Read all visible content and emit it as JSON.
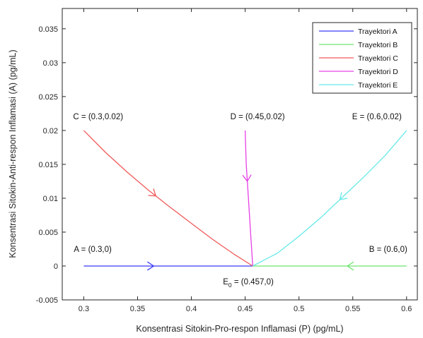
{
  "chart_data": {
    "type": "line",
    "title": "",
    "xlabel": "Konsentrasi Sitokin-Pro-respon Inflamasi (P) (pg/mL)",
    "ylabel": "Konsentrasi Sitokin-Anti-respon Inflamasi (A) (pg/mL)",
    "xlim": [
      0.28,
      0.61
    ],
    "ylim": [
      -0.005,
      0.038
    ],
    "x_ticks": [
      "0.3",
      "0.35",
      "0.4",
      "0.45",
      "0.5",
      "0.55",
      "0.6"
    ],
    "x_tick_values": [
      0.3,
      0.35,
      0.4,
      0.45,
      0.5,
      0.55,
      0.6
    ],
    "y_ticks": [
      "-0.005",
      "0",
      "0.005",
      "0.01",
      "0.015",
      "0.02",
      "0.025",
      "0.03",
      "0.035"
    ],
    "y_tick_values": [
      -0.005,
      0,
      0.005,
      0.01,
      0.015,
      0.02,
      0.025,
      0.03,
      0.035
    ],
    "grid": false,
    "legend_position": "top-right",
    "series": [
      {
        "name": "Trayektori A",
        "color": "#3b3bf5",
        "x": [
          0.3,
          0.457
        ],
        "y": [
          0,
          0
        ],
        "arrow_at": 0.365
      },
      {
        "name": "Trayektori B",
        "color": "#6fe46f",
        "x": [
          0.6,
          0.457
        ],
        "y": [
          0,
          0
        ],
        "arrow_at": 0.545
      },
      {
        "name": "Trayektori C",
        "color": "#f05a5a",
        "x": [
          0.3,
          0.32,
          0.34,
          0.36,
          0.38,
          0.4,
          0.42,
          0.44,
          0.457
        ],
        "y": [
          0.02,
          0.0168,
          0.0139,
          0.0112,
          0.0087,
          0.0063,
          0.0039,
          0.0017,
          0.0
        ],
        "arrow_at": 0.367
      },
      {
        "name": "Trayektori D",
        "color": "#e640e6",
        "x": [
          0.45,
          0.451,
          0.453,
          0.455,
          0.457
        ],
        "y": [
          0.02,
          0.015,
          0.01,
          0.005,
          0.0
        ],
        "arrow_at": 0.452
      },
      {
        "name": "Trayektori E",
        "color": "#66e8e8",
        "x": [
          0.6,
          0.58,
          0.56,
          0.54,
          0.52,
          0.5,
          0.48,
          0.457
        ],
        "y": [
          0.02,
          0.0163,
          0.0131,
          0.0101,
          0.0071,
          0.0044,
          0.0019,
          0.0
        ],
        "arrow_at": 0.538
      }
    ],
    "annotations": [
      {
        "id": "A",
        "text": "A = (0.3,0)",
        "x": 0.3,
        "y": 0
      },
      {
        "id": "B",
        "text": "B = (0.6,0)",
        "x": 0.6,
        "y": 0
      },
      {
        "id": "C",
        "text": "C = (0.3,0.02)",
        "x": 0.3,
        "y": 0.02
      },
      {
        "id": "D",
        "text": "D = (0.45,0.02)",
        "x": 0.45,
        "y": 0.02
      },
      {
        "id": "E",
        "text": "E = (0.6,0.02)",
        "x": 0.6,
        "y": 0.02
      },
      {
        "id": "E0",
        "text_main": "E",
        "text_sub": "0",
        "text_rest": " = (0.457,0)",
        "x": 0.457,
        "y": 0
      }
    ]
  }
}
